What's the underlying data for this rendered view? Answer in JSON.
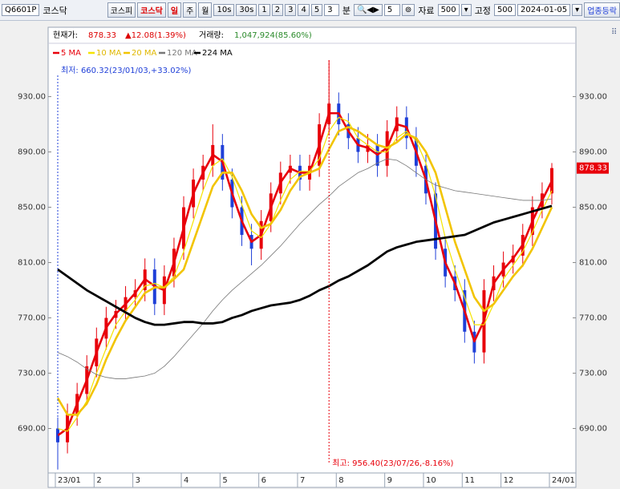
{
  "toolbar": {
    "code": "Q6601P",
    "market": "코스닥",
    "tabs": [
      "코스피",
      "코스닥"
    ],
    "periods": [
      "일",
      "주",
      "월",
      "10s",
      "30s",
      "1",
      "2",
      "3",
      "4",
      "5"
    ],
    "minute_input": "3",
    "minute_unit": "분",
    "step_input": "5",
    "data_label": "자료",
    "data_count": "500",
    "fixed_label": "고정",
    "fixed_count": "500",
    "date": "2024-01-05",
    "sector_button": "업종등락"
  },
  "header": {
    "price_label": "현재가:",
    "price": 878.33,
    "change": "▲12.08(1.39%)",
    "volume_label": "거래량:",
    "volume": "1,047,924(85.60%)"
  },
  "chart_data": {
    "type": "candlestick",
    "annotations": {
      "low": "최저: 660.32(23/01/03,+33.02%)",
      "high": "최고: 956.40(23/07/26,-8.16%)"
    },
    "categories": [
      "23/01",
      null,
      null,
      null,
      "2",
      null,
      null,
      null,
      "3",
      null,
      null,
      null,
      null,
      "4",
      null,
      null,
      null,
      "5",
      null,
      null,
      null,
      "6",
      null,
      null,
      null,
      "7",
      null,
      null,
      null,
      "8",
      null,
      null,
      null,
      null,
      "9",
      null,
      null,
      null,
      "10",
      null,
      null,
      null,
      "11",
      null,
      null,
      null,
      "12",
      null,
      null,
      null,
      null,
      "24/01"
    ],
    "open": [
      690,
      680,
      700,
      715,
      735,
      755,
      770,
      775,
      785,
      790,
      805,
      780,
      800,
      820,
      850,
      870,
      880,
      895,
      870,
      850,
      830,
      820,
      840,
      860,
      875,
      880,
      870,
      880,
      910,
      925,
      910,
      900,
      890,
      895,
      880,
      905,
      915,
      900,
      880,
      860,
      820,
      800,
      790,
      760,
      745,
      790,
      800,
      810,
      815,
      830,
      850,
      860
    ],
    "high": [
      698,
      708,
      723,
      743,
      763,
      778,
      783,
      793,
      798,
      813,
      813,
      808,
      828,
      858,
      878,
      888,
      910,
      903,
      878,
      858,
      838,
      848,
      868,
      883,
      888,
      888,
      888,
      918,
      956.4,
      933,
      918,
      908,
      903,
      903,
      913,
      923,
      923,
      908,
      888,
      868,
      828,
      808,
      798,
      768,
      798,
      808,
      818,
      823,
      838,
      858,
      868,
      882
    ],
    "low": [
      660.32,
      672,
      692,
      707,
      727,
      747,
      762,
      767,
      777,
      782,
      772,
      772,
      792,
      812,
      842,
      862,
      872,
      862,
      842,
      822,
      808,
      812,
      832,
      852,
      867,
      862,
      862,
      872,
      902,
      902,
      892,
      882,
      882,
      872,
      872,
      897,
      892,
      872,
      852,
      812,
      792,
      782,
      752,
      737,
      737,
      782,
      792,
      802,
      807,
      822,
      842,
      852
    ],
    "close": [
      680,
      700,
      715,
      735,
      755,
      770,
      775,
      785,
      790,
      805,
      780,
      800,
      820,
      850,
      870,
      880,
      895,
      870,
      850,
      830,
      820,
      840,
      860,
      875,
      880,
      870,
      880,
      910,
      925,
      910,
      900,
      890,
      895,
      880,
      905,
      915,
      900,
      880,
      860,
      820,
      800,
      790,
      760,
      745,
      790,
      800,
      810,
      815,
      830,
      850,
      860,
      878.33
    ],
    "up_color": "#e8000b",
    "down_color": "#1f3fd8",
    "series": [
      {
        "name": "5 MA",
        "color": "#e8000b",
        "width": 2.6,
        "values": [
          685,
          690,
          708,
          725,
          745,
          763,
          773,
          780,
          788,
          798,
          793,
          790,
          810,
          835,
          860,
          875,
          888,
          883,
          860,
          840,
          825,
          830,
          850,
          868,
          878,
          875,
          875,
          895,
          918,
          918,
          905,
          895,
          893,
          888,
          893,
          910,
          908,
          890,
          870,
          840,
          810,
          795,
          775,
          753,
          768,
          795,
          805,
          813,
          823,
          840,
          855,
          869
        ]
      },
      {
        "name": "10 MA",
        "color": "#f5e400",
        "width": 1.2,
        "values": [
          690,
          688,
          698,
          710,
          730,
          748,
          765,
          775,
          783,
          793,
          795,
          792,
          800,
          818,
          840,
          862,
          880,
          885,
          872,
          852,
          833,
          828,
          838,
          855,
          870,
          876,
          876,
          885,
          905,
          915,
          912,
          900,
          895,
          890,
          890,
          900,
          905,
          898,
          882,
          858,
          828,
          805,
          785,
          765,
          765,
          780,
          798,
          808,
          818,
          832,
          848,
          862
        ]
      },
      {
        "name": "20 MA",
        "color": "#f2c400",
        "width": 2.6,
        "values": [
          712,
          700,
          700,
          708,
          722,
          740,
          755,
          768,
          778,
          788,
          792,
          792,
          798,
          805,
          825,
          845,
          865,
          875,
          875,
          862,
          845,
          835,
          838,
          848,
          862,
          872,
          875,
          878,
          892,
          905,
          908,
          905,
          900,
          895,
          893,
          897,
          903,
          900,
          890,
          875,
          850,
          825,
          805,
          785,
          775,
          780,
          790,
          800,
          808,
          820,
          835,
          850
        ]
      },
      {
        "name": "120 MA",
        "color": "#777777",
        "width": 0.8,
        "values": [
          745,
          742,
          738,
          733,
          729,
          727,
          726,
          726,
          727,
          728,
          730,
          735,
          742,
          750,
          758,
          766,
          775,
          783,
          790,
          796,
          802,
          808,
          815,
          822,
          830,
          838,
          845,
          852,
          858,
          865,
          870,
          875,
          878,
          882,
          885,
          884,
          880,
          875,
          870,
          866,
          864,
          862,
          861,
          860,
          859,
          858,
          857,
          856,
          855,
          855,
          855,
          856
        ]
      },
      {
        "name": "224 MA",
        "color": "#000000",
        "width": 2.8,
        "values": [
          805,
          800,
          795,
          790,
          786,
          782,
          778,
          774,
          770,
          767,
          765,
          765,
          766,
          767,
          767,
          766,
          766,
          767,
          770,
          772,
          775,
          777,
          779,
          780,
          781,
          783,
          786,
          790,
          793,
          797,
          800,
          804,
          808,
          813,
          818,
          821,
          823,
          825,
          826,
          827,
          828,
          829,
          830,
          833,
          836,
          839,
          841,
          843,
          845,
          847,
          849,
          851
        ]
      }
    ],
    "ylim": [
      659,
      968
    ],
    "yticks": [
      {
        "value": 690,
        "label": "690.00"
      },
      {
        "value": 730,
        "label": "730.00"
      },
      {
        "value": 770,
        "label": "770.00"
      },
      {
        "value": 810,
        "label": "810.00"
      },
      {
        "value": 850,
        "label": "850.00"
      },
      {
        "value": 890,
        "label": "890.00"
      },
      {
        "value": 930,
        "label": "930.00"
      }
    ],
    "grid": false
  }
}
